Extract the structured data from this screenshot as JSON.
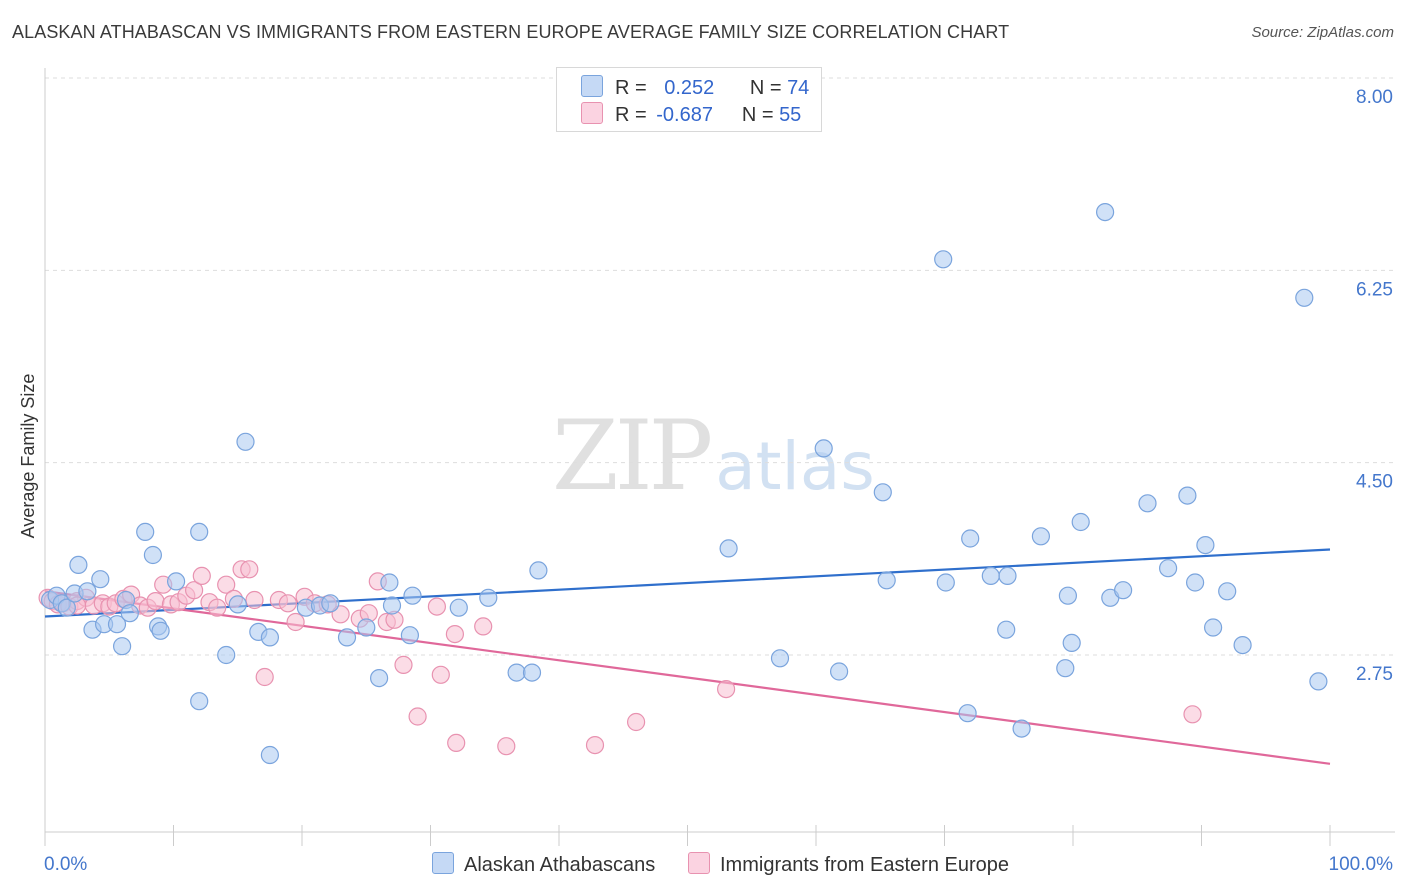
{
  "title": "ALASKAN ATHABASCAN VS IMMIGRANTS FROM EASTERN EUROPE AVERAGE FAMILY SIZE CORRELATION CHART",
  "source": "Source: ZipAtlas.com",
  "watermark": {
    "zip": "ZIP",
    "atlas": "atlas"
  },
  "legend": {
    "rows": [
      {
        "r_label": "R =",
        "r_value": "0.252",
        "n_label": "N =",
        "n_value": "74"
      },
      {
        "r_label": "R =",
        "r_value": "-0.687",
        "n_label": "N =",
        "n_value": "55"
      }
    ]
  },
  "bottom_legend": {
    "series1": "Alaskan Athabascans",
    "series2": "Immigrants from Eastern Europe"
  },
  "colors": {
    "blue_fill": "#aac8f0",
    "blue_stroke": "#7aa4dd",
    "blue_line": "#2f6fcc",
    "pink_fill": "#f7bfd2",
    "pink_stroke": "#e892b0",
    "pink_line": "#e0689a",
    "axis_text": "#4477cc",
    "grid": "#dddddd"
  },
  "chart_data": {
    "type": "scatter",
    "title": "ALASKAN ATHABASCAN VS IMMIGRANTS FROM EASTERN EUROPE AVERAGE FAMILY SIZE CORRELATION CHART",
    "xlabel": "",
    "ylabel": "Average Family Size",
    "xlim": [
      0,
      100
    ],
    "ylim": [
      1.6,
      8.2
    ],
    "x_tick_labels": [
      "0.0%",
      "100.0%"
    ],
    "y_ticks": [
      2.75,
      4.5,
      6.25,
      8.0
    ],
    "y_tick_labels": [
      "2.75",
      "4.50",
      "6.25",
      "8.00"
    ],
    "grid": true,
    "series": [
      {
        "name": "Alaskan Athabascans",
        "trend": [
          [
            0,
            3.1
          ],
          [
            100,
            3.71
          ]
        ],
        "points": [
          [
            0.4,
            3.25
          ],
          [
            0.9,
            3.29
          ],
          [
            1.3,
            3.22
          ],
          [
            1.7,
            3.18
          ],
          [
            2.3,
            3.31
          ],
          [
            2.6,
            3.57
          ],
          [
            3.3,
            3.33
          ],
          [
            3.7,
            2.98
          ],
          [
            4.3,
            3.44
          ],
          [
            4.6,
            3.03
          ],
          [
            5.6,
            3.03
          ],
          [
            6.0,
            2.83
          ],
          [
            6.3,
            3.25
          ],
          [
            6.6,
            3.13
          ],
          [
            7.8,
            3.87
          ],
          [
            8.4,
            3.66
          ],
          [
            8.8,
            3.01
          ],
          [
            9.0,
            2.97
          ],
          [
            10.2,
            3.42
          ],
          [
            12.0,
            3.87
          ],
          [
            12.0,
            2.33
          ],
          [
            14.1,
            2.75
          ],
          [
            15.0,
            3.21
          ],
          [
            15.6,
            4.69
          ],
          [
            16.6,
            2.96
          ],
          [
            17.5,
            2.91
          ],
          [
            17.5,
            1.84
          ],
          [
            20.3,
            3.18
          ],
          [
            21.4,
            3.2
          ],
          [
            22.2,
            3.22
          ],
          [
            23.5,
            2.91
          ],
          [
            25.0,
            3.0
          ],
          [
            27.0,
            3.2
          ],
          [
            26.0,
            2.54
          ],
          [
            26.8,
            3.41
          ],
          [
            28.6,
            3.29
          ],
          [
            28.4,
            2.93
          ],
          [
            32.2,
            3.18
          ],
          [
            34.5,
            3.27
          ],
          [
            36.7,
            2.59
          ],
          [
            37.9,
            2.59
          ],
          [
            38.4,
            3.52
          ],
          [
            53.2,
            3.72
          ],
          [
            57.2,
            2.72
          ],
          [
            60.6,
            4.63
          ],
          [
            61.8,
            2.6
          ],
          [
            65.2,
            4.23
          ],
          [
            65.5,
            3.43
          ],
          [
            70.1,
            3.41
          ],
          [
            69.9,
            6.35
          ],
          [
            71.8,
            2.22
          ],
          [
            72.0,
            3.81
          ],
          [
            73.6,
            3.47
          ],
          [
            74.9,
            3.47
          ],
          [
            76.0,
            2.08
          ],
          [
            74.8,
            2.98
          ],
          [
            77.5,
            3.83
          ],
          [
            79.4,
            2.63
          ],
          [
            79.9,
            2.86
          ],
          [
            79.6,
            3.29
          ],
          [
            80.6,
            3.96
          ],
          [
            82.5,
            6.78
          ],
          [
            82.9,
            3.27
          ],
          [
            83.9,
            3.34
          ],
          [
            85.8,
            4.13
          ],
          [
            87.4,
            3.54
          ],
          [
            88.9,
            4.2
          ],
          [
            89.5,
            3.41
          ],
          [
            90.3,
            3.75
          ],
          [
            90.9,
            3.0
          ],
          [
            92.0,
            3.33
          ],
          [
            93.2,
            2.84
          ],
          [
            98.0,
            6.0
          ],
          [
            99.1,
            2.51
          ]
        ]
      },
      {
        "name": "Immigrants from Eastern Europe",
        "trend": [
          [
            0,
            3.33
          ],
          [
            100,
            1.76
          ]
        ],
        "points": [
          [
            0.2,
            3.27
          ],
          [
            0.6,
            3.24
          ],
          [
            1.0,
            3.21
          ],
          [
            1.4,
            3.22
          ],
          [
            1.9,
            3.19
          ],
          [
            2.5,
            3.24
          ],
          [
            3.2,
            3.27
          ],
          [
            3.8,
            3.2
          ],
          [
            4.5,
            3.22
          ],
          [
            5.0,
            3.19
          ],
          [
            5.5,
            3.22
          ],
          [
            6.1,
            3.26
          ],
          [
            6.7,
            3.3
          ],
          [
            7.4,
            3.2
          ],
          [
            8.0,
            3.18
          ],
          [
            8.6,
            3.24
          ],
          [
            9.2,
            3.39
          ],
          [
            9.8,
            3.21
          ],
          [
            10.4,
            3.23
          ],
          [
            11.0,
            3.29
          ],
          [
            11.6,
            3.34
          ],
          [
            12.2,
            3.47
          ],
          [
            12.8,
            3.23
          ],
          [
            13.4,
            3.18
          ],
          [
            14.1,
            3.39
          ],
          [
            14.7,
            3.26
          ],
          [
            15.3,
            3.53
          ],
          [
            15.9,
            3.53
          ],
          [
            16.3,
            3.25
          ],
          [
            17.1,
            2.55
          ],
          [
            18.2,
            3.25
          ],
          [
            18.9,
            3.22
          ],
          [
            19.5,
            3.05
          ],
          [
            20.2,
            3.28
          ],
          [
            21.0,
            3.22
          ],
          [
            22.0,
            3.21
          ],
          [
            23.0,
            3.12
          ],
          [
            24.5,
            3.08
          ],
          [
            25.2,
            3.13
          ],
          [
            25.9,
            3.42
          ],
          [
            26.6,
            3.05
          ],
          [
            27.2,
            3.07
          ],
          [
            27.9,
            2.66
          ],
          [
            29.0,
            2.19
          ],
          [
            30.5,
            3.19
          ],
          [
            30.8,
            2.57
          ],
          [
            31.9,
            2.94
          ],
          [
            34.1,
            3.01
          ],
          [
            32.0,
            1.95
          ],
          [
            35.9,
            1.92
          ],
          [
            42.8,
            1.93
          ],
          [
            46.0,
            2.14
          ],
          [
            53.0,
            2.44
          ],
          [
            89.3,
            2.21
          ],
          [
            2.5,
            3.2
          ]
        ]
      }
    ]
  }
}
